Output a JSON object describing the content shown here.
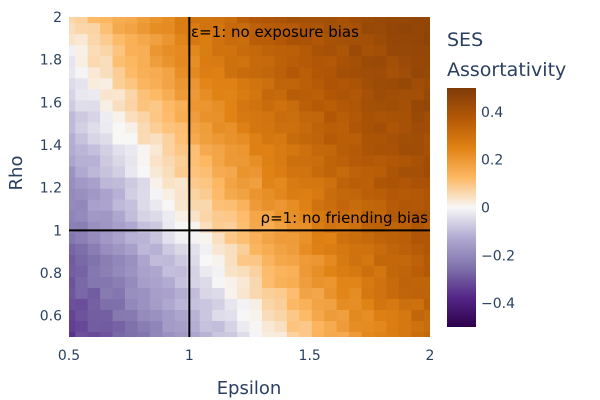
{
  "chart_data": {
    "type": "heatmap",
    "xlabel": "Epsilon",
    "ylabel": "Rho",
    "xlim": [
      0.5,
      2
    ],
    "ylim": [
      0.5,
      2
    ],
    "x_ticks": [
      {
        "value": 0.5,
        "label": "0.5"
      },
      {
        "value": 1,
        "label": "1"
      },
      {
        "value": 1.5,
        "label": "1.5"
      },
      {
        "value": 2,
        "label": "2"
      }
    ],
    "y_ticks": [
      {
        "value": 0.6,
        "label": "0.6"
      },
      {
        "value": 0.8,
        "label": "0.8"
      },
      {
        "value": 1,
        "label": "1"
      },
      {
        "value": 1.2,
        "label": "1.2"
      },
      {
        "value": 1.4,
        "label": "1.4"
      },
      {
        "value": 1.6,
        "label": "1.6"
      },
      {
        "value": 1.8,
        "label": "1.8"
      },
      {
        "value": 2,
        "label": "2"
      }
    ],
    "colorbar": {
      "title_lines": [
        "SES",
        "Assortativity"
      ],
      "range": [
        -0.5,
        0.5
      ],
      "ticks": [
        {
          "value": 0.4,
          "label": "0.4"
        },
        {
          "value": 0.2,
          "label": "0.2"
        },
        {
          "value": 0,
          "label": "0"
        },
        {
          "value": -0.2,
          "label": "−0.2"
        },
        {
          "value": -0.4,
          "label": "−0.4"
        }
      ],
      "colorscale": [
        [
          -0.5,
          "#2d004b"
        ],
        [
          -0.375,
          "#542788"
        ],
        [
          -0.25,
          "#8073ac"
        ],
        [
          -0.125,
          "#b2abd2"
        ],
        [
          0,
          "#f7f7f7"
        ],
        [
          0.125,
          "#fdb863"
        ],
        [
          0.25,
          "#e08214"
        ],
        [
          0.375,
          "#b35806"
        ],
        [
          0.5,
          "#7f3b08"
        ]
      ]
    },
    "grid": {
      "nx": 30,
      "ny": 30,
      "x_values": [
        0.5,
        0.5517,
        0.6034,
        0.6552,
        0.7069,
        0.7586,
        0.8103,
        0.8621,
        0.9138,
        0.9655,
        1.0172,
        1.069,
        1.1207,
        1.1724,
        1.2241,
        1.2759,
        1.3276,
        1.3793,
        1.431,
        1.4828,
        1.5345,
        1.5862,
        1.6379,
        1.6897,
        1.7414,
        1.7931,
        1.8448,
        1.8966,
        1.9483,
        2.0
      ],
      "y_values": [
        0.5,
        0.5517,
        0.6034,
        0.6552,
        0.7069,
        0.7586,
        0.8103,
        0.8621,
        0.9138,
        0.9655,
        1.0172,
        1.069,
        1.1207,
        1.1724,
        1.2241,
        1.2759,
        1.3276,
        1.3793,
        1.431,
        1.4828,
        1.5345,
        1.5862,
        1.6379,
        1.6897,
        1.7414,
        1.7931,
        1.8448,
        1.8966,
        1.9483,
        2.0
      ],
      "approx_model": {
        "description": "z ≈ 0.48 * tanh(1.1 * ((epsilon - 1) + 0.6 * (rho - 1)))",
        "gain": 1.1,
        "rho_weight": 0.6,
        "amplitude": 0.48
      }
    },
    "reference_lines": [
      {
        "orientation": "vertical",
        "value": 1
      },
      {
        "orientation": "horizontal",
        "value": 1
      }
    ],
    "annotations": [
      {
        "text": "ε=1: no exposure bias",
        "x": 1,
        "y": 2
      },
      {
        "text": "ρ=1: no friending bias",
        "x": 2,
        "y": 1
      }
    ]
  }
}
